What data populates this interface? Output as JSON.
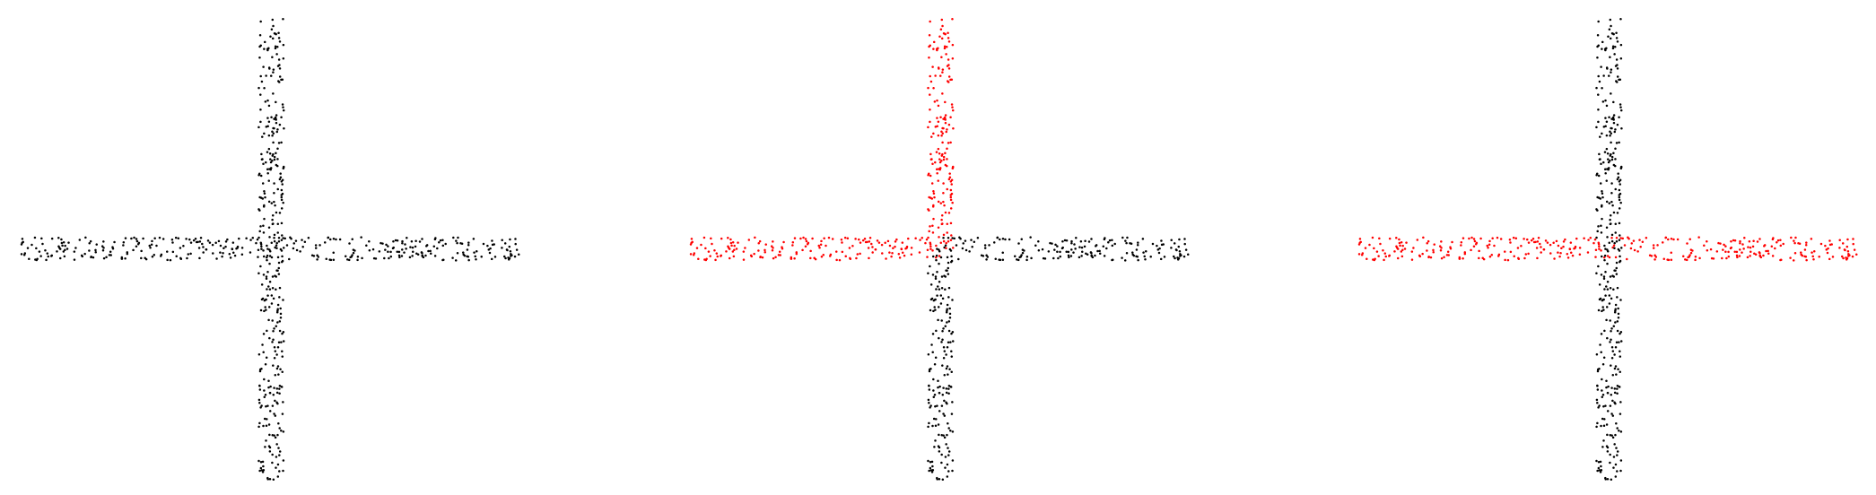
{
  "figure": {
    "panel_count": 3
  },
  "chart_data": [
    {
      "type": "scatter",
      "title": "",
      "xlabel": "",
      "ylabel": "",
      "xlim": [
        -1.0,
        1.0
      ],
      "ylim": [
        -1.0,
        1.0
      ],
      "grid": false,
      "axes_visible": false,
      "description_shape": "cross of two point bands",
      "series": [
        {
          "name": "",
          "segment": "left-arm",
          "color": "#000000",
          "count": 180,
          "x_range": [
            -1.0,
            0.0
          ],
          "y_range": [
            -0.05,
            0.05
          ]
        },
        {
          "name": "",
          "segment": "right-arm",
          "color": "#000000",
          "count": 180,
          "x_range": [
            0.0,
            1.0
          ],
          "y_range": [
            -0.05,
            0.05
          ]
        },
        {
          "name": "",
          "segment": "top-arm",
          "color": "#000000",
          "count": 180,
          "x_range": [
            -0.05,
            0.05
          ],
          "y_range": [
            0.0,
            1.0
          ]
        },
        {
          "name": "",
          "segment": "bottom-arm",
          "color": "#000000",
          "count": 180,
          "x_range": [
            -0.05,
            0.05
          ],
          "y_range": [
            -1.0,
            0.0
          ]
        }
      ]
    },
    {
      "type": "scatter",
      "title": "",
      "xlabel": "",
      "ylabel": "",
      "xlim": [
        -1.0,
        1.0
      ],
      "ylim": [
        -1.0,
        1.0
      ],
      "grid": false,
      "axes_visible": false,
      "series": [
        {
          "name": "",
          "segment": "left-arm",
          "color": "#ff0000",
          "count": 180,
          "x_range": [
            -1.0,
            0.0
          ],
          "y_range": [
            -0.05,
            0.05
          ]
        },
        {
          "name": "",
          "segment": "right-arm",
          "color": "#000000",
          "count": 180,
          "x_range": [
            0.0,
            1.0
          ],
          "y_range": [
            -0.05,
            0.05
          ]
        },
        {
          "name": "",
          "segment": "top-arm",
          "color": "#ff0000",
          "count": 180,
          "x_range": [
            -0.05,
            0.05
          ],
          "y_range": [
            0.0,
            1.0
          ]
        },
        {
          "name": "",
          "segment": "bottom-arm",
          "color": "#000000",
          "count": 180,
          "x_range": [
            -0.05,
            0.05
          ],
          "y_range": [
            -1.0,
            0.0
          ]
        }
      ]
    },
    {
      "type": "scatter",
      "title": "",
      "xlabel": "",
      "ylabel": "",
      "xlim": [
        -1.0,
        1.0
      ],
      "ylim": [
        -1.0,
        1.0
      ],
      "grid": false,
      "axes_visible": false,
      "series": [
        {
          "name": "",
          "segment": "left-arm",
          "color": "#ff0000",
          "count": 180,
          "x_range": [
            -1.0,
            0.0
          ],
          "y_range": [
            -0.05,
            0.05
          ]
        },
        {
          "name": "",
          "segment": "right-arm",
          "color": "#ff0000",
          "count": 180,
          "x_range": [
            0.0,
            1.0
          ],
          "y_range": [
            -0.05,
            0.05
          ]
        },
        {
          "name": "",
          "segment": "top-arm",
          "color": "#000000",
          "count": 180,
          "x_range": [
            -0.05,
            0.05
          ],
          "y_range": [
            0.0,
            1.0
          ]
        },
        {
          "name": "",
          "segment": "bottom-arm",
          "color": "#000000",
          "count": 180,
          "x_range": [
            -0.05,
            0.05
          ],
          "y_range": [
            -1.0,
            0.0
          ]
        }
      ]
    }
  ]
}
